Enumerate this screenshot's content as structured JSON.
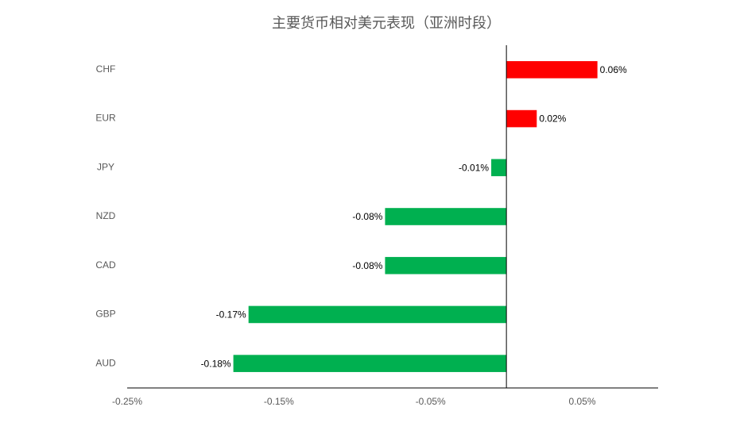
{
  "chart_data": {
    "type": "hbar",
    "title": "主要货币相对美元表现（亚洲时段）",
    "categories": [
      "CHF",
      "EUR",
      "JPY",
      "NZD",
      "CAD",
      "GBP",
      "AUD"
    ],
    "values": [
      0.06,
      0.02,
      -0.01,
      -0.08,
      -0.08,
      -0.17,
      -0.18
    ],
    "value_labels": [
      "0.06%",
      "0.02%",
      "-0.01%",
      "-0.08%",
      "-0.08%",
      "-0.17%",
      "-0.18%"
    ],
    "colors": [
      "#ff0000",
      "#ff0000",
      "#00b050",
      "#00b050",
      "#00b050",
      "#00b050",
      "#00b050"
    ],
    "xlim": [
      -0.25,
      0.1
    ],
    "xticks": [
      {
        "value": -0.25,
        "label": "-0.25%"
      },
      {
        "value": -0.15,
        "label": "-0.15%"
      },
      {
        "value": -0.05,
        "label": "-0.05%"
      },
      {
        "value": 0.05,
        "label": "0.05%"
      }
    ],
    "grid": false
  }
}
